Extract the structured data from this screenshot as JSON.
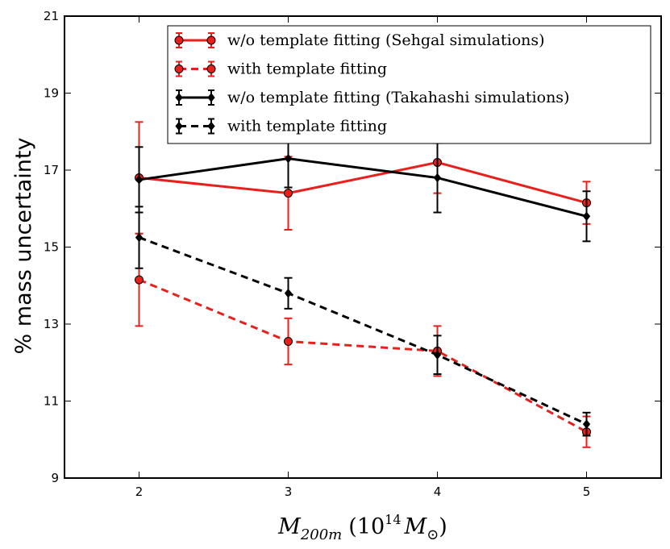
{
  "chart_data": {
    "type": "line",
    "ylabel": "% mass uncertainty",
    "xlabel": {
      "symbol": "M",
      "subscript": "200m",
      "open_paren": "(",
      "base": "10",
      "exponent": "14",
      "unit_symbol": "M",
      "unit_subscript": "⊙",
      "close_paren": ")"
    },
    "x_ticks": [
      2,
      3,
      4,
      5
    ],
    "y_ticks": [
      9,
      11,
      13,
      15,
      17,
      19,
      21
    ],
    "xlim": [
      1.5,
      5.5
    ],
    "ylim": [
      9,
      21
    ],
    "legend_position": "top-right",
    "series": [
      {
        "name": "w/o template fitting (Sehgal simulations)",
        "color": "#e8201c",
        "line_style": "solid",
        "marker": "circle",
        "x": [
          2,
          3,
          4,
          5
        ],
        "y": [
          16.8,
          16.4,
          17.2,
          16.15
        ],
        "yerr": [
          1.45,
          0.95,
          0.8,
          0.55
        ]
      },
      {
        "name": "with template fitting",
        "color": "#e8201c",
        "line_style": "dashed",
        "marker": "circle",
        "x": [
          2,
          3,
          4,
          5
        ],
        "y": [
          14.15,
          12.55,
          12.3,
          10.2
        ],
        "yerr": [
          1.2,
          0.6,
          0.65,
          0.4
        ]
      },
      {
        "name": "w/o template fitting (Takahashi simulations)",
        "color": "#000000",
        "line_style": "solid",
        "marker": "diamond",
        "x": [
          2,
          3,
          4,
          5
        ],
        "y": [
          16.75,
          17.3,
          16.8,
          15.8
        ],
        "yerr": [
          0.85,
          0.75,
          0.9,
          0.65
        ]
      },
      {
        "name": "with template fitting",
        "color": "#000000",
        "line_style": "dashed",
        "marker": "diamond",
        "x": [
          2,
          3,
          4,
          5
        ],
        "y": [
          15.25,
          13.8,
          12.2,
          10.4
        ],
        "yerr": [
          0.8,
          0.4,
          0.5,
          0.3
        ]
      }
    ]
  }
}
